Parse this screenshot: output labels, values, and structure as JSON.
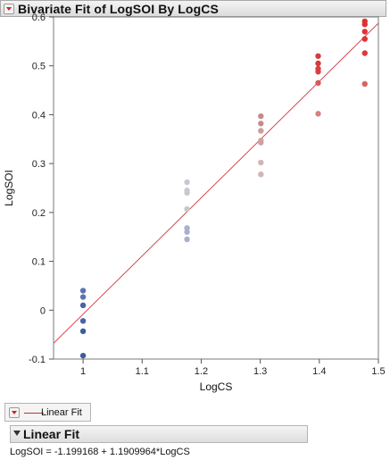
{
  "panel": {
    "title": "Bivariate Fit of LogSOI By LogCS"
  },
  "legend": {
    "label": "Linear Fit"
  },
  "report": {
    "title": "Linear Fit",
    "equation": "LogSOI = -1.199168 + 1.1909964*LogCS"
  },
  "chart_data": {
    "type": "scatter",
    "title": "",
    "xlabel": "LogCS",
    "ylabel": "LogSOI",
    "xlim": [
      0.95,
      1.5
    ],
    "ylim": [
      -0.1,
      0.6
    ],
    "xticks": [
      1,
      1.1,
      1.2,
      1.3,
      1.4,
      1.5
    ],
    "yticks": [
      -0.1,
      0,
      0.1,
      0.2,
      0.3,
      0.4,
      0.5,
      0.6
    ],
    "grid": false,
    "fit_line": {
      "intercept": -1.199168,
      "slope": 1.1909964,
      "color": "#d0363b"
    },
    "points": [
      {
        "x": 1,
        "y": 0.04,
        "color": "#5b73b4"
      },
      {
        "x": 1,
        "y": 0.027,
        "color": "#5b73b4"
      },
      {
        "x": 1,
        "y": 0.01,
        "color": "#4a63a8"
      },
      {
        "x": 1,
        "y": -0.022,
        "color": "#4a63a8"
      },
      {
        "x": 1,
        "y": -0.043,
        "color": "#3f5aa0"
      },
      {
        "x": 1,
        "y": -0.093,
        "color": "#3f5aa0"
      },
      {
        "x": 1.176,
        "y": 0.262,
        "color": "#c8c8d0"
      },
      {
        "x": 1.176,
        "y": 0.245,
        "color": "#c8c8d0"
      },
      {
        "x": 1.176,
        "y": 0.24,
        "color": "#c8c8d0"
      },
      {
        "x": 1.176,
        "y": 0.207,
        "color": "#c6c8c8"
      },
      {
        "x": 1.176,
        "y": 0.168,
        "color": "#a8b0cc"
      },
      {
        "x": 1.176,
        "y": 0.16,
        "color": "#a8b0cc"
      },
      {
        "x": 1.176,
        "y": 0.145,
        "color": "#a8b0cc"
      },
      {
        "x": 1.301,
        "y": 0.397,
        "color": "#c98a8e"
      },
      {
        "x": 1.301,
        "y": 0.382,
        "color": "#c98a8e"
      },
      {
        "x": 1.301,
        "y": 0.367,
        "color": "#cf9c9e"
      },
      {
        "x": 1.301,
        "y": 0.347,
        "color": "#cfa0a2"
      },
      {
        "x": 1.301,
        "y": 0.343,
        "color": "#cfa0a2"
      },
      {
        "x": 1.301,
        "y": 0.302,
        "color": "#d2b4b4"
      },
      {
        "x": 1.301,
        "y": 0.278,
        "color": "#d2b4b4"
      },
      {
        "x": 1.398,
        "y": 0.52,
        "color": "#d93a3a"
      },
      {
        "x": 1.398,
        "y": 0.505,
        "color": "#d93a3a"
      },
      {
        "x": 1.398,
        "y": 0.494,
        "color": "#d94040"
      },
      {
        "x": 1.398,
        "y": 0.488,
        "color": "#d94040"
      },
      {
        "x": 1.398,
        "y": 0.465,
        "color": "#d75858"
      },
      {
        "x": 1.398,
        "y": 0.402,
        "color": "#d98080"
      },
      {
        "x": 1.477,
        "y": 0.591,
        "color": "#e03030"
      },
      {
        "x": 1.477,
        "y": 0.585,
        "color": "#e03030"
      },
      {
        "x": 1.477,
        "y": 0.57,
        "color": "#e03232"
      },
      {
        "x": 1.477,
        "y": 0.555,
        "color": "#e03232"
      },
      {
        "x": 1.477,
        "y": 0.526,
        "color": "#dc3a3a"
      },
      {
        "x": 1.477,
        "y": 0.463,
        "color": "#d86464"
      }
    ]
  }
}
